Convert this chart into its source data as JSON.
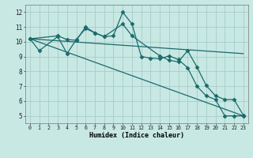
{
  "xlabel": "Humidex (Indice chaleur)",
  "xlim": [
    -0.5,
    23.5
  ],
  "ylim": [
    4.5,
    12.5
  ],
  "xticks": [
    0,
    1,
    2,
    3,
    4,
    5,
    6,
    7,
    8,
    9,
    10,
    11,
    12,
    13,
    14,
    15,
    16,
    17,
    18,
    19,
    20,
    21,
    22,
    23
  ],
  "yticks": [
    5,
    6,
    7,
    8,
    9,
    10,
    11,
    12
  ],
  "background_color": "#c8e8e4",
  "grid_color": "#a8ccc8",
  "line_color": "#1a6b6b",
  "lines": [
    {
      "x": [
        0,
        1,
        3,
        4,
        5,
        6,
        7,
        8,
        9,
        10,
        11,
        12,
        13,
        14,
        15,
        16,
        17,
        18,
        19,
        20,
        21,
        22,
        23
      ],
      "y": [
        10.2,
        9.4,
        10.35,
        9.2,
        10.15,
        10.9,
        10.6,
        10.35,
        10.4,
        12.0,
        11.2,
        9.0,
        8.9,
        8.85,
        9.05,
        8.8,
        8.25,
        7.0,
        6.35,
        6.1,
        5.0,
        5.0,
        5.0
      ],
      "marker": "D",
      "markersize": 2.5,
      "linewidth": 0.9
    },
    {
      "x": [
        0,
        3,
        4,
        5,
        6,
        7,
        8,
        10,
        11,
        14,
        15,
        16,
        17,
        18,
        19,
        20,
        21,
        22,
        23
      ],
      "y": [
        10.2,
        10.4,
        10.15,
        10.1,
        11.0,
        10.6,
        10.35,
        11.2,
        10.4,
        9.05,
        8.75,
        8.65,
        9.4,
        8.3,
        7.05,
        6.35,
        6.1,
        6.1,
        5.05
      ],
      "marker": "D",
      "markersize": 2.5,
      "linewidth": 0.9
    },
    {
      "x": [
        0,
        23
      ],
      "y": [
        10.2,
        9.2
      ],
      "marker": null,
      "markersize": 0,
      "linewidth": 0.9
    },
    {
      "x": [
        0,
        23
      ],
      "y": [
        10.2,
        5.0
      ],
      "marker": null,
      "markersize": 0,
      "linewidth": 0.9
    }
  ]
}
